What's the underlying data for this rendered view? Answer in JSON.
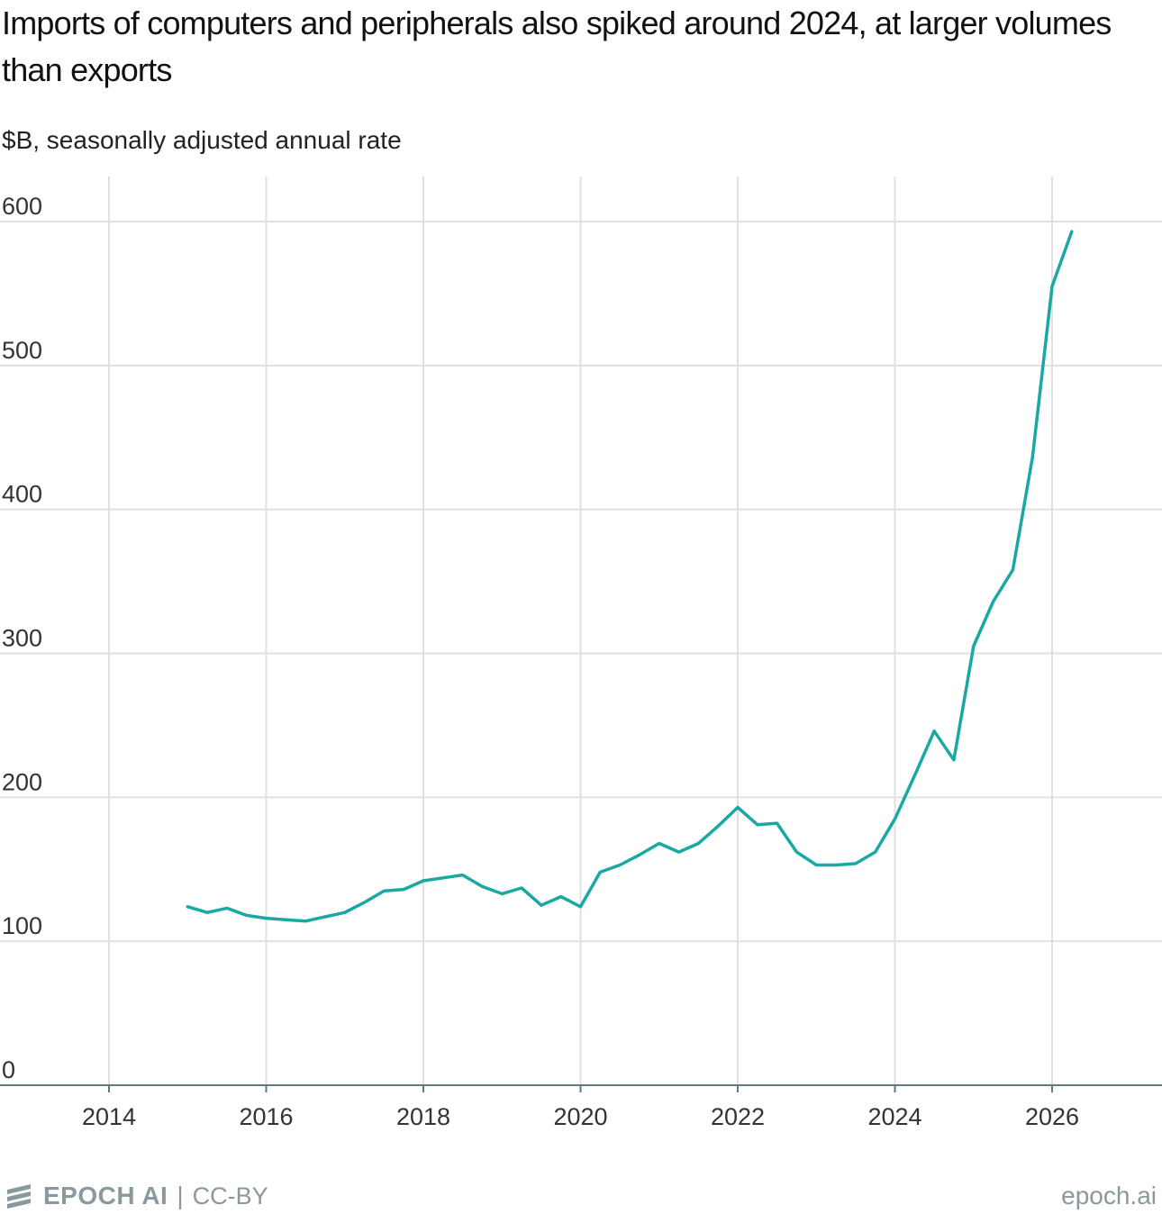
{
  "header": {
    "title": "Imports of computers and peripherals also spiked around 2024, at larger volumes than exports",
    "subtitle": "$B, seasonally adjusted annual rate"
  },
  "footer": {
    "brand": "EPOCH AI",
    "separator": "|",
    "license": "CC-BY",
    "site": "epoch.ai"
  },
  "colors": {
    "line": "#1aa8a4",
    "grid": "#e0e0e0",
    "axis": "#5f7a80",
    "logo": "#8a999e"
  },
  "chart_data": {
    "type": "line",
    "title": "Imports of computers and peripherals also spiked around 2024, at larger volumes than exports",
    "ylabel": "$B, seasonally adjusted annual rate",
    "xlabel": "",
    "xlim": [
      2013,
      2027.4
    ],
    "ylim": [
      0,
      600
    ],
    "xticks": [
      2014,
      2016,
      2018,
      2020,
      2022,
      2024,
      2026
    ],
    "yticks": [
      0,
      100,
      200,
      300,
      400,
      500,
      600
    ],
    "grid": true,
    "series": [
      {
        "x": [
          2015.0,
          2015.25,
          2015.5,
          2015.75,
          2016.0,
          2016.25,
          2016.5,
          2016.75,
          2017.0,
          2017.25,
          2017.5,
          2017.75,
          2018.0,
          2018.25,
          2018.5,
          2018.75,
          2019.0,
          2019.25,
          2019.5,
          2019.75,
          2020.0,
          2020.25,
          2020.5,
          2020.75,
          2021.0,
          2021.25,
          2021.5,
          2021.75,
          2022.0,
          2022.25,
          2022.5,
          2022.75,
          2023.0,
          2023.25,
          2023.5,
          2023.75,
          2024.0,
          2024.25,
          2024.5,
          2024.75,
          2025.0,
          2025.25,
          2025.5,
          2025.75,
          2026.0,
          2026.25
        ],
        "values": [
          124,
          120,
          123,
          118,
          116,
          115,
          114,
          117,
          120,
          127,
          135,
          136,
          142,
          144,
          146,
          138,
          133,
          137,
          125,
          131,
          124,
          148,
          153,
          160,
          168,
          162,
          168,
          180,
          193,
          181,
          182,
          162,
          153,
          153,
          154,
          162,
          185,
          215,
          246,
          226,
          305,
          336,
          358,
          436,
          555,
          593
        ]
      }
    ]
  }
}
